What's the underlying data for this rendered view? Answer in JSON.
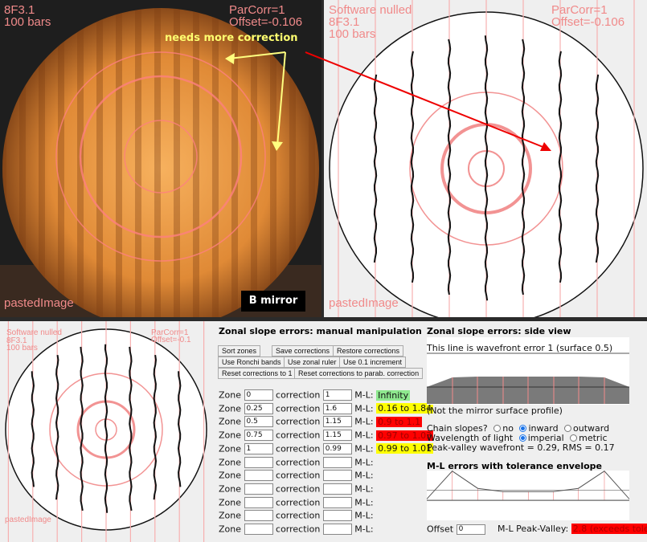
{
  "top_left": {
    "label1": "8F3.1",
    "label2": "100 bars",
    "label3": "ParCorr=1",
    "label4": "Offset=-0.106",
    "footer": "pastedImage",
    "annotation": "needs more correction",
    "badge": "B mirror"
  },
  "top_right": {
    "label0": "Software nulled",
    "label1": "8F3.1",
    "label2": "100 bars",
    "label3": "ParCorr=1",
    "label4": "Offset=-0.106",
    "footer": "pastedImage"
  },
  "bottom_left": {
    "label0": "Software nulled",
    "label1": "8F3.1",
    "label2": "100 bars",
    "label3": "ParCorr=1",
    "label4": "Offset=-0.1",
    "footer": "pastedImage"
  },
  "manual": {
    "title": "Zonal slope errors: manual manipulation",
    "buttons": [
      "Sort zones",
      "Save corrections",
      "Restore corrections",
      "Use Ronchi bands",
      "Use zonal ruler",
      "Use 0.1 increment",
      "Reset corrections to 1",
      "Reset corrections to parab. correction"
    ],
    "zone_label": "Zone",
    "correction_label": "correction",
    "ml_label": "M-L:",
    "zones": [
      {
        "zone": "0",
        "correction": "1",
        "ml": "Infinity",
        "status": "#8ee88e"
      },
      {
        "zone": "0.25",
        "correction": "1.6",
        "ml": "0.16 to 1.84",
        "status": "#ffff00"
      },
      {
        "zone": "0.5",
        "correction": "1.15",
        "ml": "0.9 to 1.1",
        "status": "#ff0000"
      },
      {
        "zone": "0.75",
        "correction": "1.15",
        "ml": "0.97 to 1.03",
        "status": "#ff0000"
      },
      {
        "zone": "1",
        "correction": "0.99",
        "ml": "0.99 to 1.01",
        "status": "#ffff00"
      },
      {
        "zone": "",
        "correction": "",
        "ml": ""
      },
      {
        "zone": "",
        "correction": "",
        "ml": ""
      },
      {
        "zone": "",
        "correction": "",
        "ml": ""
      },
      {
        "zone": "",
        "correction": "",
        "ml": ""
      },
      {
        "zone": "",
        "correction": "",
        "ml": ""
      },
      {
        "zone": "",
        "correction": "",
        "ml": ""
      }
    ]
  },
  "side": {
    "title": "Zonal slope errors: side view",
    "line_caption": "This line is wavefront error 1 (surface 0.5)",
    "note": "(Not the mirror surface profile)",
    "chain_label": "Chain slopes?",
    "chain_options": [
      "no",
      "inward",
      "outward"
    ],
    "chain_selected": "inward",
    "wavelength_label": "Wavelength of light",
    "wavelength_options": [
      "imperial",
      "metric"
    ],
    "wavelength_selected": "imperial",
    "pv_text": "Peak-valley wavefront = 0.29, RMS = 0.17",
    "ml_title": "M-L errors with tolerance envelope",
    "offset_label": "Offset",
    "offset_value": "0",
    "ml_pv_label": "M-L Peak-Valley:",
    "ml_pv_value": "2.8 (exceeds tolerance)"
  }
}
